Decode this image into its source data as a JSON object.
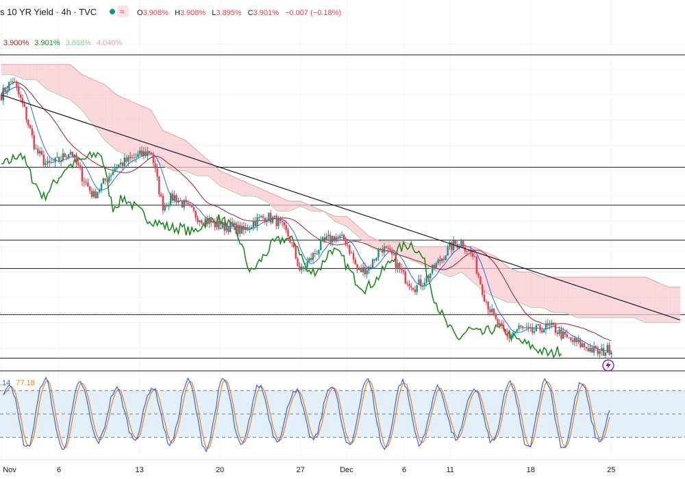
{
  "header": {
    "title": "s 10 YR Yield · 4h · TVC",
    "open_label": "O",
    "open": "3.908%",
    "high_label": "H",
    "high": "3.908%",
    "low_label": "L",
    "low": "3.895%",
    "close_label": "C",
    "close": "3.901%",
    "change": "−0.007 (−0.18%)"
  },
  "ichimoku_legend": {
    "conversion": "3.900%",
    "base": "3.901%",
    "lagging": "3.888%",
    "span": "4.040%"
  },
  "stoch_legend": {
    "k": ".14",
    "d": "77.18"
  },
  "colors": {
    "up": "#089981",
    "down": "#f23645",
    "conversion": "#2962ff",
    "base": "#9c1d1d",
    "lagging": "#1b8a1b",
    "cloud_bear": "#f7c9cf",
    "cloud_bull": "#cfe8cf",
    "stoch_k": "#2962ff",
    "stoch_d": "#f57c00",
    "stoch_band": "#e3f0fb"
  },
  "icons": {
    "flash": "lightning-icon",
    "alert": "approx-icon"
  },
  "chart_data": {
    "type": "candlestick",
    "xaxis_ticks": [
      "Nov",
      "6",
      "13",
      "20",
      "27",
      "Dec",
      "6",
      "11",
      "18",
      "25"
    ],
    "ylim_price": [
      3.83,
      4.54
    ],
    "horizontal_levels": [
      4.479,
      4.257,
      4.182,
      4.113,
      4.057,
      3.966,
      3.88
    ],
    "trendline": {
      "start": {
        "day": 0,
        "price": 4.4
      },
      "end": {
        "day": 56,
        "price": 4.0
      }
    },
    "price_anchor_days": [
      0,
      1,
      2,
      3,
      4,
      5,
      6,
      7,
      8,
      9,
      10,
      11,
      12,
      13,
      14,
      15,
      16,
      17,
      18,
      19,
      20,
      21,
      22,
      23,
      24,
      25,
      26,
      27,
      28,
      29,
      30,
      31,
      32,
      33,
      34,
      35,
      36,
      37,
      38,
      39,
      40,
      41,
      42,
      43,
      44,
      45,
      46,
      47,
      48,
      49,
      50,
      51,
      52,
      53
    ],
    "price_anchors": [
      4.4,
      4.43,
      4.37,
      4.29,
      4.26,
      4.27,
      4.29,
      4.24,
      4.2,
      4.23,
      4.26,
      4.27,
      4.28,
      4.29,
      4.18,
      4.2,
      4.18,
      4.16,
      4.15,
      4.14,
      4.14,
      4.13,
      4.15,
      4.16,
      4.15,
      4.12,
      4.05,
      4.08,
      4.11,
      4.12,
      4.11,
      4.05,
      4.06,
      4.1,
      4.08,
      4.04,
      4.02,
      4.04,
      4.07,
      4.1,
      4.11,
      4.08,
      4.0,
      3.95,
      3.92,
      3.94,
      3.93,
      3.94,
      3.94,
      3.92,
      3.91,
      3.9,
      3.89,
      3.9
    ],
    "cloud_anchor_days": [
      0,
      1,
      2,
      3,
      4,
      5,
      6,
      7,
      8,
      9,
      10,
      11,
      12,
      13,
      14,
      15,
      16,
      17,
      18,
      19,
      20,
      21,
      22,
      23,
      24,
      25,
      26,
      27,
      28,
      29,
      30,
      31,
      32,
      33,
      34,
      35,
      36,
      37,
      38,
      39,
      40,
      41,
      42,
      43,
      44,
      45,
      46,
      47,
      48,
      49,
      50,
      51,
      52,
      53,
      54,
      55,
      56,
      57,
      58,
      59
    ],
    "cloud_span_a": [
      4.44,
      4.44,
      4.43,
      4.43,
      4.41,
      4.4,
      4.39,
      4.37,
      4.34,
      4.31,
      4.29,
      4.28,
      4.28,
      4.28,
      4.26,
      4.25,
      4.25,
      4.24,
      4.24,
      4.22,
      4.21,
      4.2,
      4.2,
      4.19,
      4.17,
      4.17,
      4.18,
      4.17,
      4.17,
      4.15,
      4.14,
      4.12,
      4.1,
      4.09,
      4.09,
      4.08,
      4.07,
      4.06,
      4.05,
      4.04,
      4.05,
      4.03,
      4.01,
      4.0,
      3.99,
      3.99,
      3.98,
      3.98,
      3.97,
      3.97,
      3.96,
      3.96,
      3.96,
      3.96,
      3.96,
      3.96,
      3.95,
      3.95,
      3.95,
      3.95
    ],
    "cloud_span_b": [
      4.46,
      4.46,
      4.46,
      4.46,
      4.46,
      4.46,
      4.46,
      4.44,
      4.43,
      4.42,
      4.4,
      4.39,
      4.38,
      4.37,
      4.33,
      4.32,
      4.31,
      4.29,
      4.27,
      4.25,
      4.24,
      4.23,
      4.22,
      4.21,
      4.2,
      4.19,
      4.19,
      4.18,
      4.17,
      4.16,
      4.16,
      4.14,
      4.12,
      4.11,
      4.11,
      4.11,
      4.1,
      4.1,
      4.1,
      4.1,
      4.1,
      4.1,
      4.09,
      4.08,
      4.06,
      4.05,
      4.05,
      4.04,
      4.04,
      4.04,
      4.04,
      4.04,
      4.04,
      4.04,
      4.04,
      4.04,
      4.04,
      4.03,
      4.02,
      4.02
    ],
    "stoch_ylim": [
      0,
      100
    ],
    "stoch_band": [
      20,
      80
    ],
    "stoch_mid": 50
  }
}
